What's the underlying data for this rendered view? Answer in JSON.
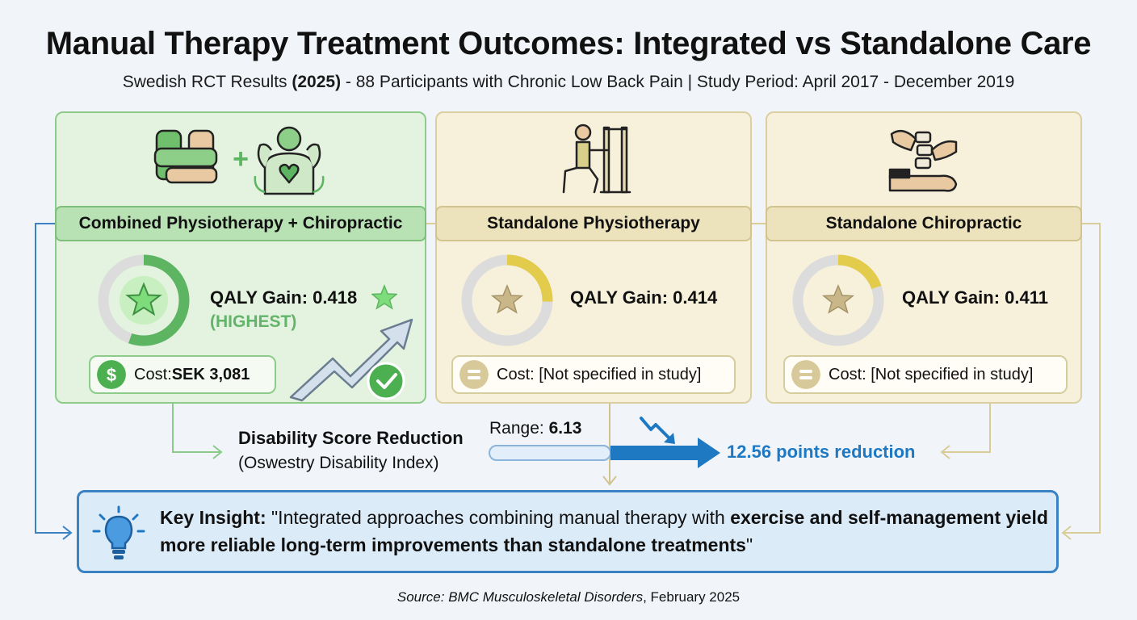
{
  "title": "Manual Therapy Treatment Outcomes: Integrated vs Standalone Care",
  "subtitle": {
    "pre": "Swedish RCT Results ",
    "year": "(2025)",
    "post": " - 88 Participants with Chronic Low Back Pain | Study Period: April 2017 - December 2019"
  },
  "cards": {
    "combined": {
      "header": "Combined Physiotherapy + Chiropractic",
      "qaly": "QALY Gain: 0.418",
      "qaly_value": 0.418,
      "highlight": "(HIGHEST)",
      "cost_label": "Cost: ",
      "cost_value": "SEK 3,081",
      "plus_sign": "+"
    },
    "physio": {
      "header": "Standalone Physiotherapy",
      "qaly": "QALY Gain: 0.414",
      "qaly_value": 0.414,
      "cost_text": "Cost: [Not specified in study]"
    },
    "chiro": {
      "header": "Standalone Chiropractic",
      "qaly": "QALY Gain: 0.411",
      "qaly_value": 0.411,
      "cost_text": "Cost: [Not specified in study]"
    }
  },
  "disability": {
    "title": "Disability Score Reduction",
    "subtitle": "(Oswestry Disability Index)",
    "range_label": "Range: ",
    "range_value": "6.13",
    "reduction": "12.56 points reduction"
  },
  "insight": {
    "label": "Key Insight:",
    "quote_start": " \"Integrated approaches combining manual therapy with ",
    "bold_part": "exercise and self-management yield more reliable long-term improvements than standalone treatments",
    "quote_end": "\""
  },
  "source": {
    "prefix": "Source: ",
    "journal": "BMC Musculoskeletal Disorders",
    "date": ", February 2025"
  },
  "colors": {
    "green": "#5db562",
    "gold": "#e3cc4c",
    "blue": "#1e78c2",
    "ring_gray": "#dcdcdc"
  }
}
